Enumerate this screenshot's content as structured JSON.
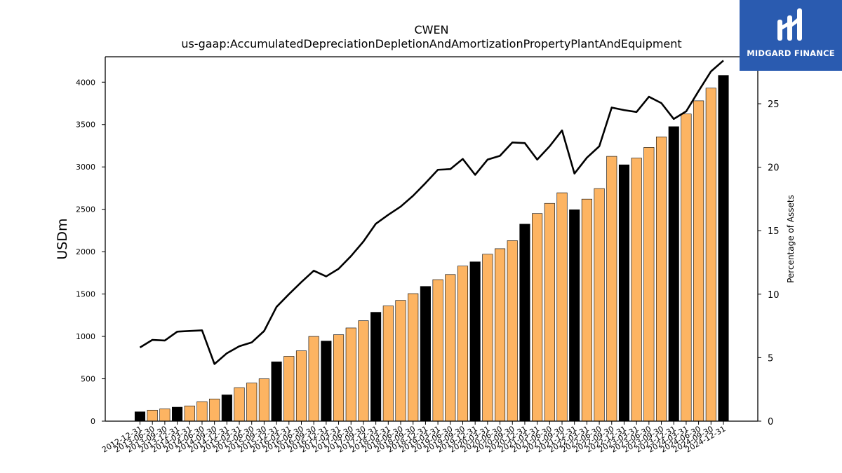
{
  "chart_data": {
    "type": "bar",
    "title": "CWEN",
    "subtitle": "us-gaap:AccumulatedDepreciationDepletionAndAmortizationPropertyPlantAndEquipment",
    "ylabel": "USDm",
    "y2label": "Percentage of Assets",
    "ylim": [
      0,
      4300
    ],
    "y2lim": [
      0,
      28.7
    ],
    "yticks": [
      0,
      500,
      1000,
      1500,
      2000,
      2500,
      3000,
      3500,
      4000
    ],
    "y2ticks": [
      0,
      5,
      10,
      15,
      20,
      25
    ],
    "categories": [
      "2012-12-31",
      "2013-06-30",
      "2013-09-30",
      "2013-12-31",
      "2014-03-31",
      "2014-06-30",
      "2014-09-30",
      "2014-12-31",
      "2015-03-31",
      "2015-06-30",
      "2015-09-30",
      "2015-12-31",
      "2016-03-31",
      "2016-06-30",
      "2016-09-30",
      "2016-12-31",
      "2017-03-31",
      "2017-06-30",
      "2017-09-30",
      "2017-12-31",
      "2018-03-31",
      "2018-06-30",
      "2018-09-30",
      "2018-12-31",
      "2019-03-31",
      "2019-06-30",
      "2019-09-30",
      "2019-12-31",
      "2020-03-31",
      "2020-06-30",
      "2020-09-30",
      "2020-12-31",
      "2021-03-31",
      "2021-06-30",
      "2021-09-30",
      "2021-12-31",
      "2022-03-31",
      "2022-06-30",
      "2022-09-30",
      "2022-12-31",
      "2023-03-31",
      "2023-06-30",
      "2023-09-30",
      "2023-12-31",
      "2024-03-31",
      "2024-06-30",
      "2024-09-30",
      "2024-12-31"
    ],
    "series": [
      {
        "type": "bar",
        "values": [
          110,
          130,
          145,
          165,
          180,
          230,
          262,
          310,
          395,
          450,
          500,
          700,
          765,
          830,
          1000,
          945,
          1020,
          1100,
          1185,
          1285,
          1360,
          1425,
          1505,
          1590,
          1670,
          1730,
          1830,
          1880,
          1970,
          2035,
          2130,
          2325,
          2450,
          2570,
          2695,
          2495,
          2620,
          2745,
          3125,
          3025,
          3105,
          3230,
          3355,
          3475,
          3625,
          3780,
          3930,
          4080
        ]
      },
      {
        "type": "line",
        "axis": "right",
        "values": [
          5.8,
          6.4,
          6.35,
          7.05,
          7.1,
          7.15,
          4.5,
          5.35,
          5.9,
          6.2,
          7.1,
          9.0,
          10.0,
          10.95,
          11.85,
          11.4,
          12.0,
          13.0,
          14.15,
          15.55,
          16.25,
          16.9,
          17.75,
          18.75,
          19.8,
          19.85,
          20.65,
          19.4,
          20.6,
          20.9,
          21.95,
          21.9,
          20.6,
          21.65,
          22.9,
          19.5,
          20.75,
          21.65,
          24.7,
          24.5,
          24.35,
          25.55,
          25.05,
          23.8,
          24.4,
          26.0,
          27.55,
          28.4
        ]
      }
    ],
    "bar_colors": {
      "default": "#fdb462",
      "year_end": "#000000"
    },
    "line_color": "#000000",
    "grid": false,
    "legend": "none"
  },
  "logo": {
    "text": "MIDGARD FINANCE",
    "bg": "#2a5bb0"
  }
}
